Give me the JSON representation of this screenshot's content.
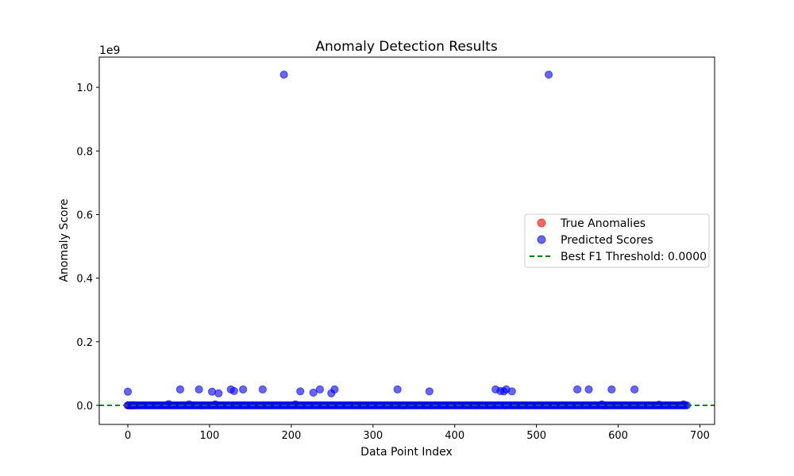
{
  "chart_data": {
    "type": "scatter",
    "title": "Anomaly Detection Results",
    "xlabel": "Data Point Index",
    "ylabel": "Anomaly Score",
    "y_offset_text": "1e9",
    "xlim": [
      -35,
      718
    ],
    "ylim": [
      -60000000,
      1095000000
    ],
    "x_ticks": [
      0,
      100,
      200,
      300,
      400,
      500,
      600,
      700
    ],
    "x_tick_labels": [
      "0",
      "100",
      "200",
      "300",
      "400",
      "500",
      "600",
      "700"
    ],
    "y_ticks": [
      0,
      200000000,
      400000000,
      600000000,
      800000000,
      1000000000
    ],
    "y_tick_labels": [
      "0.0",
      "0.2",
      "0.4",
      "0.6",
      "0.8",
      "1.0"
    ],
    "grid": false,
    "legend_position": "center-right",
    "series": [
      {
        "name": "True Anomalies",
        "color": "#ff0000",
        "marker": "circle",
        "x": [
          0,
          1,
          2,
          3,
          4,
          5,
          6,
          7,
          8
        ],
        "y": [
          0,
          0,
          0,
          0,
          0,
          0,
          0,
          0,
          0
        ]
      },
      {
        "name": "Predicted Scores",
        "color": "#0000ff",
        "marker": "circle",
        "dense_baseline": {
          "x_start": 0,
          "x_end": 684,
          "y": 0
        },
        "x": [
          0,
          50,
          64,
          75,
          87,
          103,
          107,
          111,
          126,
          130,
          141,
          165,
          191,
          205,
          211,
          227,
          235,
          249,
          253,
          330,
          369,
          450,
          456,
          460,
          463,
          470,
          515,
          550,
          564,
          580,
          592,
          620,
          650,
          680
        ],
        "y": [
          43000000,
          4000000,
          50000000,
          3000000,
          50000000,
          43000000,
          3000000,
          38000000,
          50000000,
          45000000,
          50000000,
          50000000,
          1040000000,
          3000000,
          44000000,
          40000000,
          50000000,
          38000000,
          50000000,
          50000000,
          44000000,
          50000000,
          45000000,
          44000000,
          50000000,
          44000000,
          1040000000,
          50000000,
          50000000,
          3000000,
          50000000,
          50000000,
          2000000,
          3000000
        ]
      },
      {
        "name": "Best F1 Threshold: 0.0000",
        "color": "#008000",
        "line_style": "dashed",
        "y": 0
      }
    ]
  }
}
